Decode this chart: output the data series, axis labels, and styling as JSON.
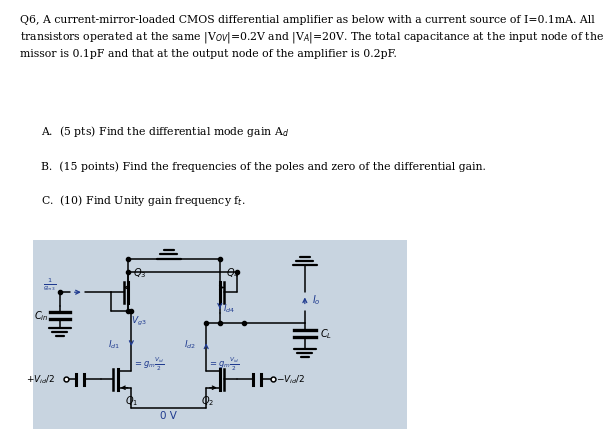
{
  "para": "Q6, A current-mirror-loaded CMOS differential amplifier as below with a current source of I=0.1mA. All\ntransistors operated at the same |V$_{OV}$|=0.2V and |V$_A$|=20V. The total capacitance at the input node of the\nmissor is 0.1pF and that at the output node of the amplifier is 0.2pF.",
  "items": [
    "A.  (5 pts) Find the differential mode gain A$_d$",
    "B.  (15 points) Find the frequencies of the poles and zero of the differential gain.",
    "C.  (10) Find Unity gain frequency f$_t$."
  ],
  "circuit_bg": "#c8d4e0",
  "fig_bg": "#ffffff",
  "blue": "#1f3a8f",
  "black": "#000000"
}
